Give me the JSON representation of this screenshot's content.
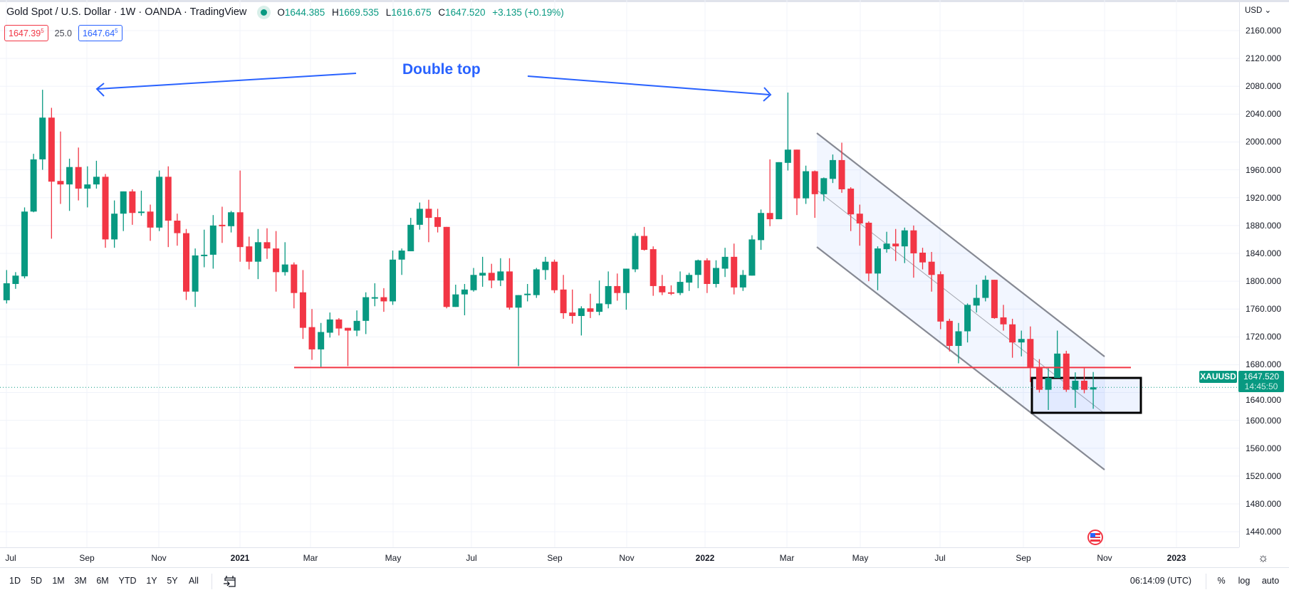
{
  "header": {
    "title": "Gold Spot / U.S. Dollar · 1W · OANDA · TradingView",
    "ohlc": {
      "o_key": "O",
      "o": "1644.385",
      "h_key": "H",
      "h": "1669.535",
      "l_key": "L",
      "l": "1616.675",
      "c_key": "C",
      "c": "1647.520",
      "change": "+3.135 (+0.19%)"
    },
    "bid_main": "1647.39",
    "bid_sup": "5",
    "spread": "25.0",
    "ask_main": "1647.64",
    "ask_sup": "5"
  },
  "annotation": {
    "text": "Double top"
  },
  "price_axis": {
    "currency": "USD ⌄",
    "labels": [
      "2160.000",
      "2120.000",
      "2080.000",
      "2040.000",
      "2000.000",
      "1960.000",
      "1920.000",
      "1880.000",
      "1840.000",
      "1800.000",
      "1760.000",
      "1720.000",
      "1680.000",
      "1640.000",
      "1600.000",
      "1560.000",
      "1520.000",
      "1480.000",
      "1440.000"
    ],
    "symbol_tag": "XAUUSD",
    "last_price": "1647.520",
    "countdown": "14:45:50"
  },
  "time_axis": {
    "labels": [
      "Jul",
      "Sep",
      "Nov",
      "2021",
      "Mar",
      "May",
      "Jul",
      "Sep",
      "Nov",
      "2022",
      "Mar",
      "May",
      "Jul",
      "Sep",
      "Nov",
      "2023"
    ]
  },
  "bottom_bar": {
    "ranges": [
      "1D",
      "5D",
      "1M",
      "3M",
      "6M",
      "YTD",
      "1Y",
      "5Y",
      "All"
    ],
    "clock": "06:14:09 (UTC)",
    "percent": "%",
    "log": "log",
    "auto": "auto"
  },
  "colors": {
    "up": "#089981",
    "down": "#f23645",
    "accent": "#2962ff",
    "support": "#f23645",
    "channel": "#868993"
  },
  "chart_data": {
    "type": "candlestick",
    "title": "Gold Spot / U.S. Dollar · 1W · OANDA",
    "interval": "1W",
    "ylim": [
      1420,
      2180
    ],
    "support_level": 1676,
    "current_price": 1647.52,
    "fields": [
      "open",
      "high",
      "low",
      "close"
    ],
    "candles": [
      [
        1772.6,
        1816,
        1768,
        1797
      ],
      [
        1796,
        1813,
        1789,
        1808
      ],
      [
        1807,
        1906,
        1804,
        1900
      ],
      [
        1900,
        1983,
        1899,
        1975
      ],
      [
        1975,
        2075,
        1960,
        2035
      ],
      [
        2035,
        2049,
        1861,
        1943
      ],
      [
        1944,
        2015,
        1911,
        1939
      ],
      [
        1939,
        1976,
        1901,
        1964
      ],
      [
        1964,
        1992,
        1916,
        1933
      ],
      [
        1933,
        1965,
        1906,
        1939
      ],
      [
        1939,
        1973,
        1933,
        1950
      ],
      [
        1950,
        1954,
        1848,
        1860
      ],
      [
        1860,
        1916,
        1848,
        1897
      ],
      [
        1897,
        1929,
        1872,
        1929
      ],
      [
        1929,
        1932,
        1881,
        1898
      ],
      [
        1898,
        1930,
        1894,
        1900
      ],
      [
        1900,
        1910,
        1858,
        1877
      ],
      [
        1877,
        1959,
        1872,
        1950
      ],
      [
        1950,
        1965,
        1849,
        1887
      ],
      [
        1887,
        1897,
        1851,
        1869
      ],
      [
        1869,
        1875,
        1773,
        1785
      ],
      [
        1785,
        1847,
        1763,
        1837
      ],
      [
        1837,
        1874,
        1820,
        1838
      ],
      [
        1838,
        1895,
        1818,
        1880
      ],
      [
        1881,
        1907,
        1855,
        1879
      ],
      [
        1879,
        1901,
        1870,
        1899
      ],
      [
        1899,
        1959,
        1828,
        1849
      ],
      [
        1850,
        1864,
        1817,
        1828
      ],
      [
        1828,
        1875,
        1803,
        1856
      ],
      [
        1856,
        1876,
        1832,
        1847
      ],
      [
        1847,
        1872,
        1785,
        1813
      ],
      [
        1813,
        1856,
        1808,
        1824
      ],
      [
        1824,
        1827,
        1761,
        1783
      ],
      [
        1784,
        1816,
        1717,
        1733
      ],
      [
        1734,
        1760,
        1687,
        1702
      ],
      [
        1702,
        1740,
        1677,
        1727
      ],
      [
        1726,
        1755,
        1719,
        1745
      ],
      [
        1745,
        1747,
        1722,
        1732
      ],
      [
        1733,
        1733,
        1678,
        1729
      ],
      [
        1729,
        1758,
        1721,
        1743
      ],
      [
        1743,
        1784,
        1724,
        1777
      ],
      [
        1776,
        1797,
        1764,
        1777
      ],
      [
        1777,
        1790,
        1756,
        1771
      ],
      [
        1771,
        1844,
        1766,
        1831
      ],
      [
        1831,
        1847,
        1809,
        1844
      ],
      [
        1843,
        1891,
        1843,
        1881
      ],
      [
        1881,
        1913,
        1874,
        1904
      ],
      [
        1904,
        1917,
        1856,
        1891
      ],
      [
        1892,
        1904,
        1870,
        1878
      ],
      [
        1878,
        1878,
        1761,
        1763
      ],
      [
        1763,
        1795,
        1763,
        1781
      ],
      [
        1781,
        1796,
        1751,
        1788
      ],
      [
        1787,
        1819,
        1785,
        1809
      ],
      [
        1808,
        1835,
        1792,
        1812
      ],
      [
        1812,
        1825,
        1790,
        1801
      ],
      [
        1801,
        1833,
        1793,
        1814
      ],
      [
        1814,
        1833,
        1759,
        1762
      ],
      [
        1762,
        1780,
        1678,
        1780
      ],
      [
        1780,
        1796,
        1771,
        1782
      ],
      [
        1780,
        1819,
        1776,
        1817
      ],
      [
        1816,
        1835,
        1802,
        1828
      ],
      [
        1828,
        1831,
        1783,
        1787
      ],
      [
        1788,
        1809,
        1746,
        1754
      ],
      [
        1755,
        1788,
        1739,
        1750
      ],
      [
        1750,
        1764,
        1722,
        1761
      ],
      [
        1761,
        1782,
        1747,
        1756
      ],
      [
        1756,
        1801,
        1751,
        1768
      ],
      [
        1767,
        1814,
        1761,
        1793
      ],
      [
        1793,
        1811,
        1772,
        1783
      ],
      [
        1783,
        1818,
        1759,
        1818
      ],
      [
        1817,
        1869,
        1813,
        1865
      ],
      [
        1865,
        1878,
        1844,
        1845
      ],
      [
        1846,
        1850,
        1779,
        1793
      ],
      [
        1793,
        1809,
        1780,
        1784
      ],
      [
        1784,
        1794,
        1780,
        1783
      ],
      [
        1783,
        1814,
        1780,
        1799
      ],
      [
        1798,
        1812,
        1786,
        1809
      ],
      [
        1809,
        1831,
        1790,
        1830
      ],
      [
        1830,
        1833,
        1783,
        1796
      ],
      [
        1796,
        1830,
        1791,
        1819
      ],
      [
        1818,
        1848,
        1806,
        1835
      ],
      [
        1835,
        1854,
        1781,
        1791
      ],
      [
        1791,
        1816,
        1786,
        1809
      ],
      [
        1808,
        1866,
        1808,
        1860
      ],
      [
        1859,
        1903,
        1845,
        1898
      ],
      [
        1898,
        1975,
        1879,
        1889
      ],
      [
        1889,
        1971,
        1889,
        1971
      ],
      [
        1970,
        2071,
        1959,
        1989
      ],
      [
        1989,
        1989,
        1895,
        1919
      ],
      [
        1919,
        1966,
        1911,
        1958
      ],
      [
        1958,
        1959,
        1891,
        1925
      ],
      [
        1925,
        1949,
        1915,
        1948
      ],
      [
        1947,
        1982,
        1941,
        1974
      ],
      [
        1974,
        1999,
        1927,
        1932
      ],
      [
        1933,
        1935,
        1872,
        1896
      ],
      [
        1897,
        1910,
        1851,
        1883
      ],
      [
        1884,
        1886,
        1800,
        1811
      ],
      [
        1811,
        1850,
        1787,
        1847
      ],
      [
        1846,
        1871,
        1841,
        1854
      ],
      [
        1854,
        1875,
        1829,
        1850
      ],
      [
        1850,
        1877,
        1826,
        1873
      ],
      [
        1873,
        1880,
        1805,
        1840
      ],
      [
        1841,
        1848,
        1817,
        1827
      ],
      [
        1828,
        1842,
        1785,
        1809
      ],
      [
        1810,
        1814,
        1731,
        1742
      ],
      [
        1743,
        1746,
        1699,
        1707
      ],
      [
        1707,
        1740,
        1682,
        1728
      ],
      [
        1728,
        1768,
        1712,
        1766
      ],
      [
        1765,
        1795,
        1755,
        1776
      ],
      [
        1776,
        1808,
        1771,
        1802
      ],
      [
        1802,
        1802,
        1746,
        1747
      ],
      [
        1748,
        1766,
        1729,
        1738
      ],
      [
        1738,
        1746,
        1690,
        1712
      ],
      [
        1712,
        1729,
        1692,
        1717
      ],
      [
        1717,
        1735,
        1655,
        1676
      ],
      [
        1676,
        1688,
        1640,
        1644
      ],
      [
        1644,
        1675,
        1615,
        1661
      ],
      [
        1661,
        1729,
        1661,
        1696
      ],
      [
        1696,
        1700,
        1641,
        1644
      ],
      [
        1644,
        1669,
        1618,
        1657
      ],
      [
        1657,
        1675,
        1639,
        1644
      ],
      [
        1644.385,
        1669.535,
        1616.675,
        1647.52
      ]
    ]
  }
}
